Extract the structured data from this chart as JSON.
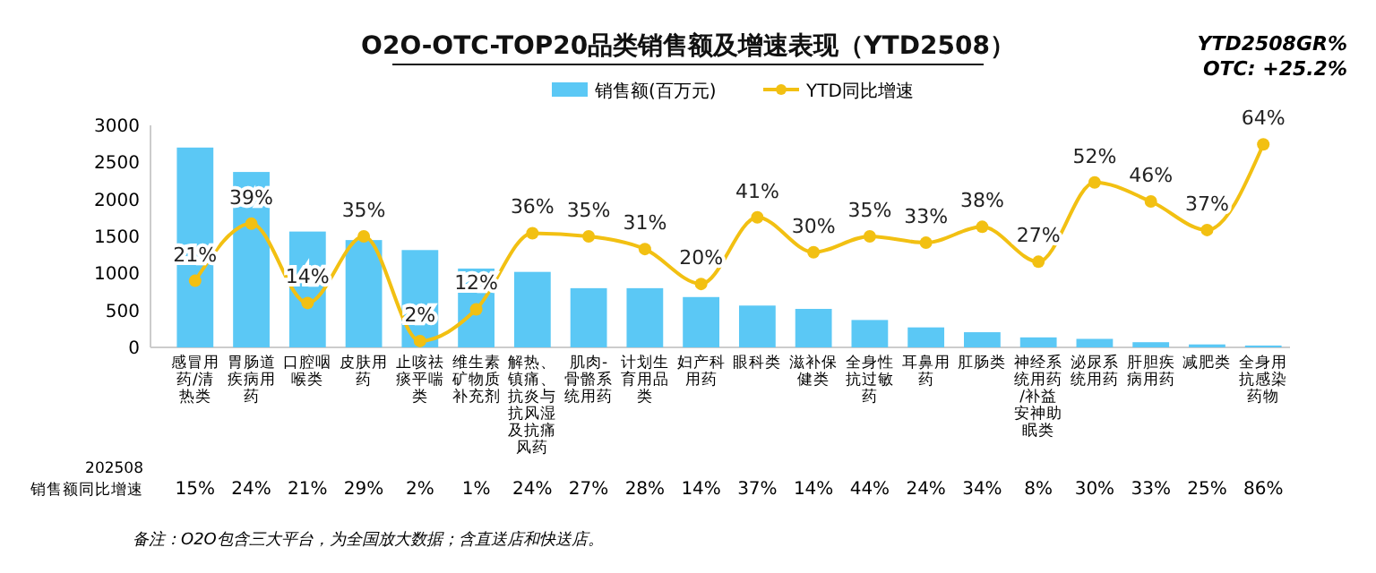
{
  "chart_data": {
    "type": "bar",
    "title": "O2O-OTC-TOP20品类销售额及增速表现（YTD2508）",
    "annotations": [
      "YTD2508GR%",
      "OTC: +25.2%",
      "备注：O2O包含三大平台，为全国放大数据；含直送店和快送店。",
      "202508 销售额同比增速",
      "15%",
      "24%",
      "21%",
      "29%",
      "2%",
      "1%",
      "24%",
      "27%",
      "28%",
      "14%",
      "37%",
      "14%",
      "44%",
      "24%",
      "34%",
      "8%",
      "30%",
      "33%",
      "25%",
      "86%"
    ],
    "categories": [
      "感冒用药/清热类",
      "胃肠道疾病用药",
      "口腔咽喉类",
      "皮肤用药",
      "止咳祛痰平喘类",
      "维生素矿物质补充剂",
      "解热、镇痛、抗炎与抗风湿及抗痛风药",
      "肌肉-骨骼系统用药",
      "计划生育用品类",
      "妇产科用药",
      "眼科类",
      "滋补保健类",
      "全身性抗过敏药",
      "耳鼻用药",
      "肛肠类",
      "神经系统用药/补益安神助眠类",
      "泌尿系统用药",
      "肝胆疾病用药",
      "减肥类",
      "全身用抗感染药物"
    ],
    "series": [
      {
        "name": "销售额(百万元)",
        "color": "#5bc8f5",
        "values": [
          2700,
          2370,
          1565,
          1450,
          1315,
          1065,
          1020,
          800,
          800,
          680,
          565,
          520,
          370,
          270,
          205,
          135,
          115,
          70,
          40,
          25
        ]
      },
      {
        "name": "YTD同比增速",
        "type": "line",
        "axis": "y2",
        "color": "#f2c012",
        "values": [
          21,
          39,
          14,
          35,
          2,
          12,
          36,
          35,
          31,
          20,
          41,
          30,
          35,
          33,
          38,
          27,
          52,
          46,
          37,
          64
        ],
        "value_labels": [
          "21%",
          "39%",
          "14%",
          "35%",
          "2%",
          "12%",
          "36%",
          "35%",
          "31%",
          "20%",
          "41%",
          "30%",
          "35%",
          "33%",
          "38%",
          "27%",
          "52%",
          "46%",
          "37%",
          "64%"
        ]
      }
    ],
    "ylim": [
      0,
      3000
    ],
    "yticks": [
      0,
      500,
      1000,
      1500,
      2000,
      2500,
      3000
    ],
    "y2lim": [
      0,
      70
    ],
    "legend": "top",
    "marker": "circle",
    "grid": false
  }
}
